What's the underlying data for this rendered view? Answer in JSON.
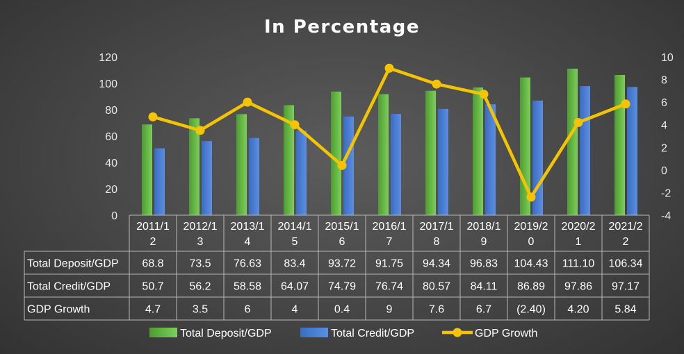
{
  "chart_data": {
    "type": "bar",
    "title": "In Percentage",
    "categories": [
      [
        "2011/1",
        "2"
      ],
      [
        "2012/1",
        "3"
      ],
      [
        "2013/1",
        "4"
      ],
      [
        "2014/1",
        "5"
      ],
      [
        "2015/1",
        "6"
      ],
      [
        "2016/1",
        "7"
      ],
      [
        "2017/1",
        "8"
      ],
      [
        "2018/1",
        "9"
      ],
      [
        "2019/2",
        "0"
      ],
      [
        "2020/2",
        "1"
      ],
      [
        "2021/2",
        "2"
      ]
    ],
    "series": [
      {
        "name": "Total Deposit/GDP",
        "kind": "bar",
        "axis": "left",
        "color": "#6cbf4a",
        "values": [
          68.8,
          73.5,
          76.63,
          83.4,
          93.72,
          91.75,
          94.34,
          96.83,
          104.43,
          111.1,
          106.34
        ],
        "labels": [
          "68.8",
          "73.5",
          "76.63",
          "83.4",
          "93.72",
          "91.75",
          "94.34",
          "96.83",
          "104.43",
          "111.10",
          "106.34"
        ]
      },
      {
        "name": "Total Credit/GDP",
        "kind": "bar",
        "axis": "left",
        "color": "#4a7fd6",
        "values": [
          50.7,
          56.2,
          58.58,
          64.07,
          74.79,
          76.74,
          80.57,
          84.11,
          86.89,
          97.86,
          97.17
        ],
        "labels": [
          "50.7",
          "56.2",
          "58.58",
          "64.07",
          "74.79",
          "76.74",
          "80.57",
          "84.11",
          "86.89",
          "97.86",
          "97.17"
        ]
      },
      {
        "name": "GDP Growth",
        "kind": "line",
        "axis": "right",
        "color": "#f5c400",
        "values": [
          4.7,
          3.5,
          6,
          4,
          0.4,
          9,
          7.6,
          6.7,
          -2.4,
          4.2,
          5.84
        ],
        "labels": [
          "4.7",
          "3.5",
          "6",
          "4",
          "0.4",
          "9",
          "7.6",
          "6.7",
          "(2.40)",
          "4.20",
          "5.84"
        ]
      }
    ],
    "y_left": {
      "min": 0,
      "max": 120,
      "step": 20,
      "ticks": [
        "0",
        "20",
        "40",
        "60",
        "80",
        "100",
        "120"
      ]
    },
    "y_right": {
      "min": -4,
      "max": 10,
      "step": 2,
      "ticks": [
        "-4",
        "-2",
        "0",
        "2",
        "4",
        "6",
        "8",
        "10"
      ]
    },
    "grid": false,
    "legend": "bottom",
    "data_table": true
  }
}
